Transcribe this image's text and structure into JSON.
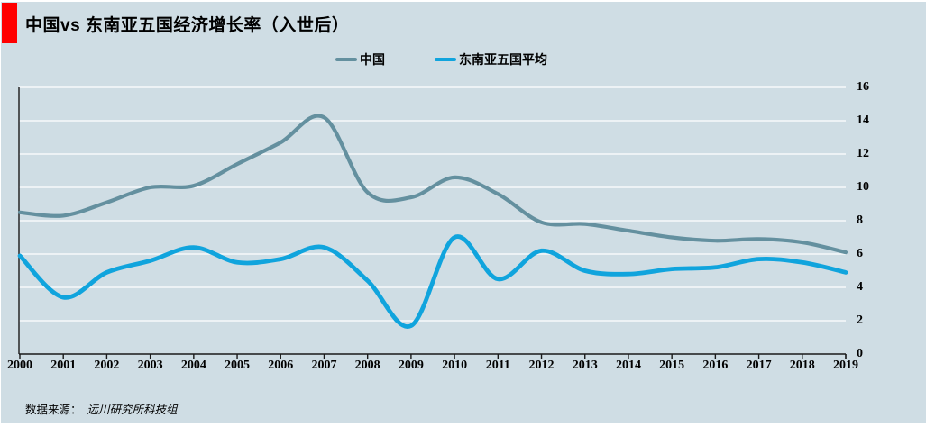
{
  "title": "中国vs 东南亚五国经济增长率（入世后）",
  "source": {
    "prefix": "数据来源：",
    "name": "远川研究所科技组"
  },
  "colors": {
    "background": "#cfdde4",
    "title_accent_red": "#ff0000",
    "china_line": "#64909f",
    "sea_line": "#10a4dd",
    "gridline": "#ffffff",
    "axis": "#1a1a1a"
  },
  "chart_data": {
    "type": "line",
    "title": "中国vs 东南亚五国经济增长率（入世后）",
    "categories": [
      "2000",
      "2001",
      "2002",
      "2003",
      "2004",
      "2005",
      "2006",
      "2007",
      "2008",
      "2009",
      "2010",
      "2011",
      "2012",
      "2013",
      "2014",
      "2015",
      "2016",
      "2017",
      "2018",
      "2019"
    ],
    "series": [
      {
        "name": "中国",
        "color": "#64909f",
        "values": [
          8.5,
          8.3,
          9.1,
          10.0,
          10.1,
          11.4,
          12.7,
          14.2,
          9.7,
          9.4,
          10.6,
          9.6,
          7.9,
          7.8,
          7.4,
          7.0,
          6.8,
          6.9,
          6.7,
          6.1
        ]
      },
      {
        "name": "东南亚五国平均",
        "color": "#10a4dd",
        "values": [
          5.9,
          3.4,
          4.9,
          5.6,
          6.4,
          5.5,
          5.7,
          6.4,
          4.4,
          1.7,
          7.0,
          4.5,
          6.2,
          5.0,
          4.8,
          5.1,
          5.2,
          5.7,
          5.5,
          4.9
        ]
      }
    ],
    "xlabel": "",
    "ylabel": "",
    "ylim": [
      0,
      16
    ],
    "yticks": [
      0,
      2,
      4,
      6,
      8,
      10,
      12,
      14,
      16
    ],
    "grid": true,
    "gridline_color": "white",
    "legend_position": "top",
    "y_axis_side": "right",
    "smoothed": true
  }
}
